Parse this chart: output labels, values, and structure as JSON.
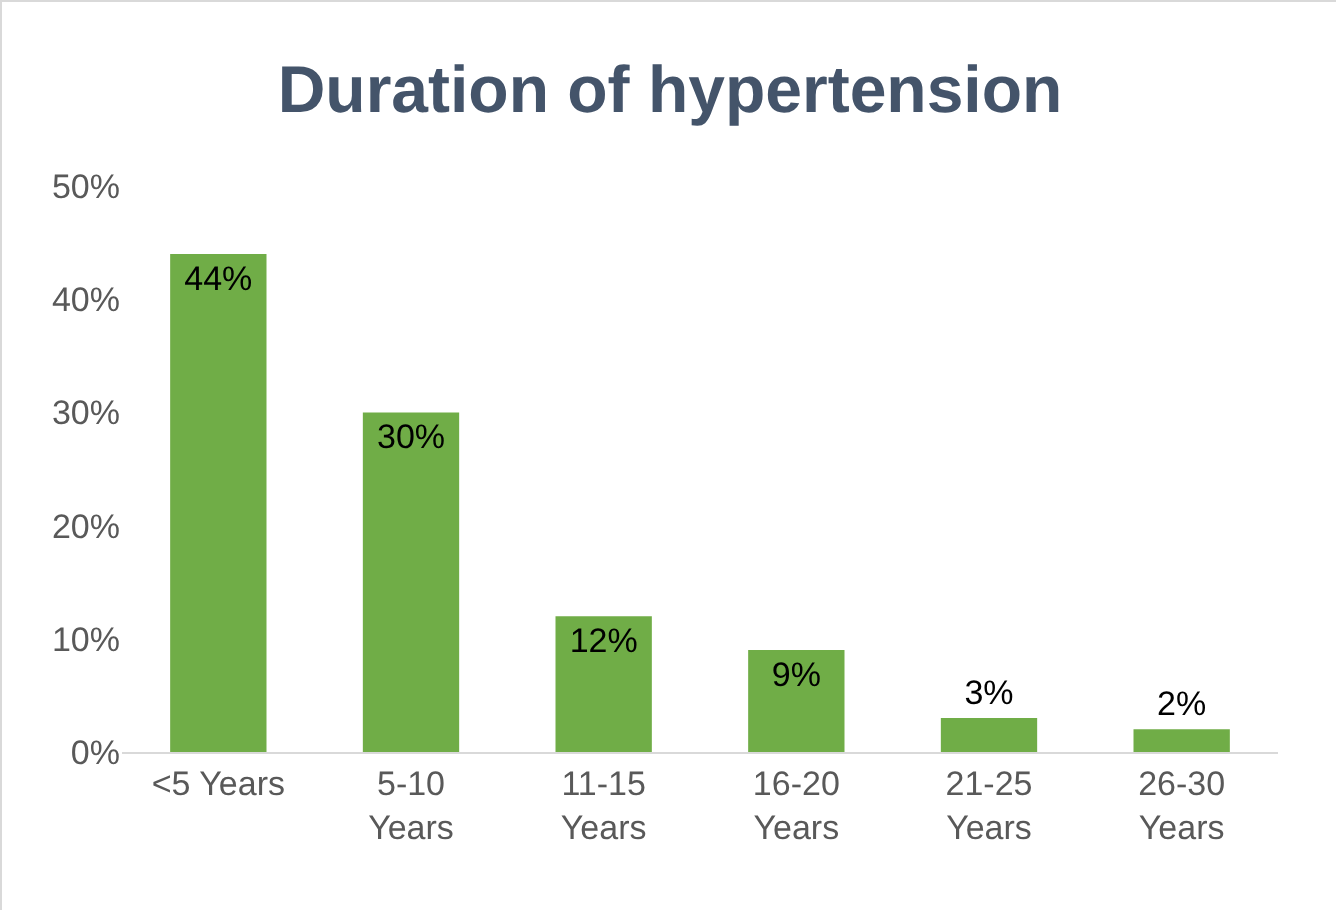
{
  "chart_data": {
    "type": "bar",
    "title": "Duration of hypertension",
    "categories": [
      "<5 Years",
      "5-10 Years",
      "11-15 Years",
      "16-20 Years",
      "21-25 Years",
      "26-30 Years"
    ],
    "values": [
      44,
      30,
      12,
      9,
      3,
      2
    ],
    "value_labels": [
      "44%",
      "30%",
      "12%",
      "9%",
      "3%",
      "2%"
    ],
    "color": "#70ad47",
    "ylim": [
      0,
      50
    ],
    "yticks": [
      {
        "value": 0,
        "label": "0%"
      },
      {
        "value": 10,
        "label": "10%"
      },
      {
        "value": 20,
        "label": "20%"
      },
      {
        "value": 30,
        "label": "30%"
      },
      {
        "value": 40,
        "label": "40%"
      },
      {
        "value": 50,
        "label": "50%"
      }
    ],
    "grid": false,
    "legend": false
  }
}
